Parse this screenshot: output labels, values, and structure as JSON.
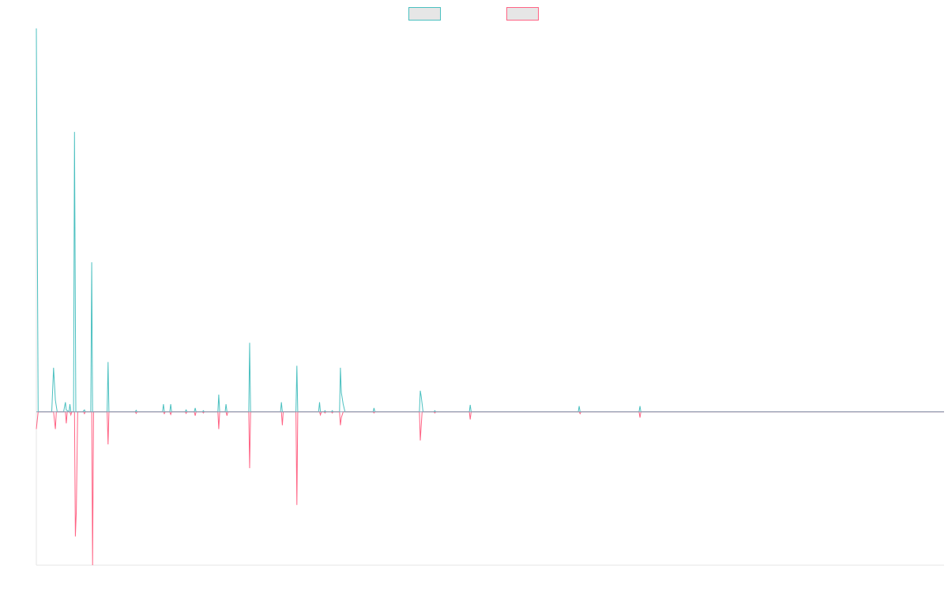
{
  "chart_data": {
    "type": "line",
    "title": "",
    "xlabel": "",
    "ylabel": "",
    "grid": false,
    "legend": {
      "placement": "top-center",
      "entries": [
        {
          "name": "",
          "color": "#4bc0c0"
        },
        {
          "name": "",
          "color": "#ff6384"
        }
      ]
    },
    "x_range": [
      0,
      1000
    ],
    "ylim": [
      -40,
      100
    ],
    "series": [
      {
        "name": "",
        "color": "#4bc0c0",
        "points": [
          [
            0,
            100
          ],
          [
            2,
            0
          ],
          [
            17,
            0
          ],
          [
            19,
            11.5
          ],
          [
            21,
            3
          ],
          [
            23,
            0
          ],
          [
            30,
            0
          ],
          [
            32,
            2.5
          ],
          [
            33,
            0.5
          ],
          [
            36,
            0
          ],
          [
            37,
            2
          ],
          [
            38,
            0
          ],
          [
            41,
            0
          ],
          [
            42,
            73
          ],
          [
            43.5,
            0
          ],
          [
            51,
            0
          ],
          [
            53,
            0.5
          ],
          [
            54,
            0
          ],
          [
            60,
            0
          ],
          [
            61,
            39
          ],
          [
            62,
            0
          ],
          [
            78,
            0
          ],
          [
            79,
            13
          ],
          [
            80,
            0
          ],
          [
            109,
            0
          ],
          [
            110,
            0.4
          ],
          [
            111,
            0
          ],
          [
            139,
            0
          ],
          [
            140,
            2
          ],
          [
            141,
            0
          ],
          [
            147,
            0
          ],
          [
            148,
            2
          ],
          [
            149,
            0
          ],
          [
            164,
            0
          ],
          [
            165,
            0.5
          ],
          [
            166,
            0
          ],
          [
            174,
            0
          ],
          [
            175,
            1
          ],
          [
            176,
            0
          ],
          [
            183,
            0
          ],
          [
            184,
            0.3
          ],
          [
            185,
            0
          ],
          [
            200,
            0
          ],
          [
            201,
            4.5
          ],
          [
            202,
            0
          ],
          [
            208,
            0
          ],
          [
            209,
            2
          ],
          [
            210,
            0
          ],
          [
            234,
            0
          ],
          [
            235,
            18
          ],
          [
            236,
            0
          ],
          [
            269,
            0
          ],
          [
            270,
            2.5
          ],
          [
            271,
            0
          ],
          [
            286,
            0
          ],
          [
            287,
            12
          ],
          [
            288,
            0
          ],
          [
            311,
            0
          ],
          [
            312,
            2.5
          ],
          [
            313,
            0
          ],
          [
            317,
            0
          ],
          [
            318,
            0.3
          ],
          [
            319,
            0
          ],
          [
            325,
            0
          ],
          [
            326,
            0.3
          ],
          [
            327,
            0
          ],
          [
            334,
            0
          ],
          [
            335,
            11.5
          ],
          [
            336,
            5
          ],
          [
            338,
            2
          ],
          [
            340,
            0
          ],
          [
            371,
            0
          ],
          [
            372,
            1
          ],
          [
            373,
            0
          ],
          [
            422,
            0
          ],
          [
            423,
            5.5
          ],
          [
            424,
            4
          ],
          [
            426,
            0
          ],
          [
            438,
            0
          ],
          [
            439,
            0.3
          ],
          [
            440,
            0
          ],
          [
            477,
            0
          ],
          [
            478,
            1.8
          ],
          [
            479,
            0
          ],
          [
            597,
            0
          ],
          [
            598,
            1.5
          ],
          [
            599,
            0
          ],
          [
            664,
            0
          ],
          [
            665,
            1.5
          ],
          [
            666,
            0
          ],
          [
            1000,
            0
          ]
        ]
      },
      {
        "name": "",
        "color": "#ff6384",
        "points": [
          [
            0,
            -4.5
          ],
          [
            2,
            0
          ],
          [
            19,
            0
          ],
          [
            21,
            -4.5
          ],
          [
            22,
            0
          ],
          [
            32,
            0
          ],
          [
            33,
            -3
          ],
          [
            34,
            0
          ],
          [
            37,
            0
          ],
          [
            38,
            -0.8
          ],
          [
            39,
            0
          ],
          [
            42,
            0
          ],
          [
            43,
            -32.5
          ],
          [
            44,
            -26
          ],
          [
            45.5,
            0
          ],
          [
            52,
            0
          ],
          [
            53,
            -0.5
          ],
          [
            54,
            0
          ],
          [
            61,
            0
          ],
          [
            62,
            -40
          ],
          [
            63,
            0
          ],
          [
            78,
            0
          ],
          [
            79,
            -8.5
          ],
          [
            80,
            0
          ],
          [
            109,
            0
          ],
          [
            110,
            -0.4
          ],
          [
            111,
            0
          ],
          [
            140,
            0
          ],
          [
            141,
            -0.5
          ],
          [
            142,
            0
          ],
          [
            147,
            0
          ],
          [
            148,
            -0.7
          ],
          [
            149,
            0
          ],
          [
            164,
            0
          ],
          [
            165,
            -0.4
          ],
          [
            166,
            0
          ],
          [
            174,
            0
          ],
          [
            175,
            -1
          ],
          [
            176,
            0
          ],
          [
            183,
            0
          ],
          [
            184,
            -0.3
          ],
          [
            185,
            0
          ],
          [
            200,
            0
          ],
          [
            201,
            -4.5
          ],
          [
            202,
            0
          ],
          [
            209,
            0
          ],
          [
            210,
            -1
          ],
          [
            211,
            0
          ],
          [
            234,
            0
          ],
          [
            235,
            -14.7
          ],
          [
            236,
            0
          ],
          [
            270,
            0
          ],
          [
            271,
            -3.5
          ],
          [
            272,
            0
          ],
          [
            286,
            0
          ],
          [
            287,
            -24.3
          ],
          [
            288,
            0
          ],
          [
            312,
            0
          ],
          [
            313,
            -0.8
          ],
          [
            314,
            0
          ],
          [
            317,
            0
          ],
          [
            318,
            -0.3
          ],
          [
            319,
            0
          ],
          [
            325,
            0
          ],
          [
            326,
            -0.3
          ],
          [
            327,
            0
          ],
          [
            334,
            0
          ],
          [
            335,
            -3.5
          ],
          [
            336,
            -1.5
          ],
          [
            338,
            0
          ],
          [
            371,
            0
          ],
          [
            372,
            -0.3
          ],
          [
            373,
            0
          ],
          [
            422,
            0
          ],
          [
            423,
            -7.5
          ],
          [
            425,
            0
          ],
          [
            438,
            0
          ],
          [
            439,
            -0.3
          ],
          [
            440,
            0
          ],
          [
            477,
            0
          ],
          [
            478,
            -2
          ],
          [
            479,
            0
          ],
          [
            598,
            0
          ],
          [
            599,
            -0.5
          ],
          [
            600,
            0
          ],
          [
            664,
            0
          ],
          [
            665,
            -1.5
          ],
          [
            666,
            0
          ],
          [
            1000,
            0
          ]
        ]
      }
    ]
  },
  "colors": {
    "series_a": "#4bc0c0",
    "series_b": "#ff6384",
    "legend_fill": "#e6e6e6",
    "axis": "#e4e4e4",
    "zero_line": "#8aa4b8"
  }
}
